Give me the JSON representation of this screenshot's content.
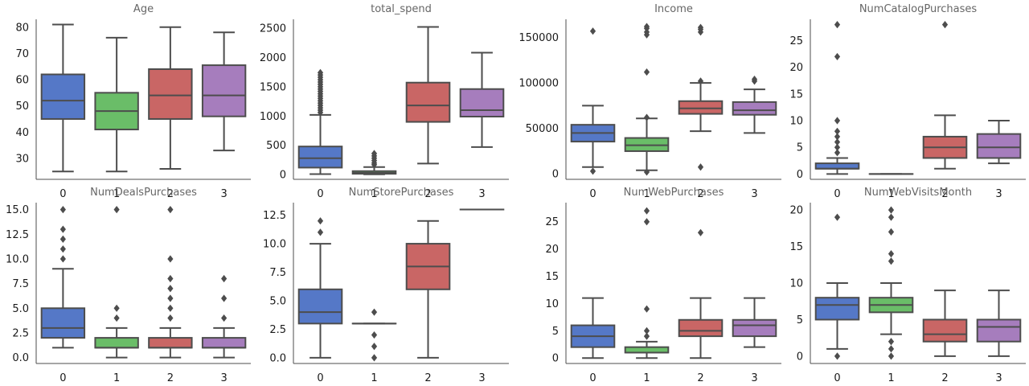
{
  "colors": {
    "0": "#5578c7",
    "1": "#6abd68",
    "2": "#c96665",
    "3": "#a67dbd",
    "line": "#4d4d4d"
  },
  "chart_data": [
    {
      "type": "box",
      "title": "Age",
      "categories": [
        "0",
        "1",
        "2",
        "3"
      ],
      "ylim": [
        22,
        83
      ],
      "yticks": [
        30,
        40,
        50,
        60,
        70,
        80
      ],
      "ytick_labels": [
        "30",
        "40",
        "50",
        "60",
        "70",
        "80"
      ],
      "boxes": [
        {
          "category": "0",
          "whisker_low": 25,
          "q1": 45,
          "median": 52,
          "q3": 62,
          "whisker_high": 81,
          "fliers": []
        },
        {
          "category": "1",
          "whisker_low": 25,
          "q1": 41,
          "median": 48,
          "q3": 55,
          "whisker_high": 76,
          "fliers": []
        },
        {
          "category": "2",
          "whisker_low": 26,
          "q1": 45,
          "median": 54,
          "q3": 64,
          "whisker_high": 80,
          "fliers": []
        },
        {
          "category": "3",
          "whisker_low": 33,
          "q1": 46,
          "median": 54,
          "q3": 65.5,
          "whisker_high": 78,
          "fliers": []
        }
      ]
    },
    {
      "type": "box",
      "title": "total_spend",
      "categories": [
        "0",
        "1",
        "2",
        "3"
      ],
      "ylim": [
        -80,
        2650
      ],
      "yticks": [
        0,
        500,
        1000,
        1500,
        2000,
        2500
      ],
      "ytick_labels": [
        "0",
        "500",
        "1000",
        "1500",
        "2000",
        "2500"
      ],
      "boxes": [
        {
          "category": "0",
          "whisker_low": 10,
          "q1": 120,
          "median": 280,
          "q3": 480,
          "whisker_high": 1020,
          "fliers": [
            1060,
            1100,
            1140,
            1180,
            1220,
            1260,
            1300,
            1340,
            1380,
            1420,
            1460,
            1500,
            1540,
            1580,
            1620,
            1660,
            1700,
            1740
          ]
        },
        {
          "category": "1",
          "whisker_low": 5,
          "q1": 15,
          "median": 30,
          "q3": 60,
          "whisker_high": 130,
          "fliers": [
            170,
            200,
            240,
            280,
            320,
            360
          ]
        },
        {
          "category": "2",
          "whisker_low": 190,
          "q1": 900,
          "median": 1180,
          "q3": 1570,
          "whisker_high": 2520,
          "fliers": []
        },
        {
          "category": "3",
          "whisker_low": 470,
          "q1": 990,
          "median": 1100,
          "q3": 1460,
          "whisker_high": 2080,
          "fliers": []
        }
      ]
    },
    {
      "type": "box",
      "title": "Income",
      "categories": [
        "0",
        "1",
        "2",
        "3"
      ],
      "ylim": [
        -6000,
        170000
      ],
      "yticks": [
        0,
        50000,
        100000,
        150000
      ],
      "ytick_labels": [
        "0",
        "50000",
        "100000",
        "150000"
      ],
      "boxes": [
        {
          "category": "0",
          "whisker_low": 7500,
          "q1": 35500,
          "median": 45000,
          "q3": 54000,
          "whisker_high": 75000,
          "fliers": [
            3000,
            157000
          ]
        },
        {
          "category": "1",
          "whisker_low": 4000,
          "q1": 25000,
          "median": 31500,
          "q3": 39500,
          "whisker_high": 61000,
          "fliers": [
            2000,
            62000,
            112000,
            153000,
            156000,
            160000,
            162000
          ]
        },
        {
          "category": "2",
          "whisker_low": 47000,
          "q1": 66000,
          "median": 72000,
          "q3": 80000,
          "whisker_high": 100000,
          "fliers": [
            7500,
            102000,
            156000,
            159000,
            161000
          ]
        },
        {
          "category": "3",
          "whisker_low": 45000,
          "q1": 65000,
          "median": 70000,
          "q3": 79000,
          "whisker_high": 93000,
          "fliers": [
            102000,
            104000
          ]
        }
      ]
    },
    {
      "type": "box",
      "title": "NumCatalogPurchases",
      "categories": [
        "0",
        "1",
        "2",
        "3"
      ],
      "ylim": [
        -1,
        29
      ],
      "yticks": [
        0,
        5,
        10,
        15,
        20,
        25
      ],
      "ytick_labels": [
        "0",
        "5",
        "10",
        "15",
        "20",
        "25"
      ],
      "boxes": [
        {
          "category": "0",
          "whisker_low": 0,
          "q1": 1,
          "median": 1,
          "q3": 2,
          "whisker_high": 3,
          "fliers": [
            4,
            5,
            6,
            7,
            8,
            10,
            22,
            28
          ]
        },
        {
          "category": "1",
          "whisker_low": 0,
          "q1": 0,
          "median": 0,
          "q3": 0,
          "whisker_high": 0,
          "fliers": []
        },
        {
          "category": "2",
          "whisker_low": 1,
          "q1": 3,
          "median": 5,
          "q3": 7,
          "whisker_high": 11,
          "fliers": [
            28
          ]
        },
        {
          "category": "3",
          "whisker_low": 2,
          "q1": 3,
          "median": 5,
          "q3": 7.5,
          "whisker_high": 10,
          "fliers": []
        }
      ]
    },
    {
      "type": "box",
      "title": "NumDealsPurchases",
      "categories": [
        "0",
        "1",
        "2",
        "3"
      ],
      "ylim": [
        -0.6,
        15.7
      ],
      "yticks": [
        0,
        2.5,
        5,
        7.5,
        10,
        12.5,
        15
      ],
      "ytick_labels": [
        "0.0",
        "2.5",
        "5.0",
        "7.5",
        "10.0",
        "12.5",
        "15.0"
      ],
      "boxes": [
        {
          "category": "0",
          "whisker_low": 1,
          "q1": 2,
          "median": 3,
          "q3": 5,
          "whisker_high": 9,
          "fliers": [
            10,
            11,
            12,
            13,
            15
          ]
        },
        {
          "category": "1",
          "whisker_low": 0,
          "q1": 1,
          "median": 1,
          "q3": 2,
          "whisker_high": 3,
          "fliers": [
            4,
            5,
            15
          ]
        },
        {
          "category": "2",
          "whisker_low": 0,
          "q1": 1,
          "median": 1,
          "q3": 2,
          "whisker_high": 3,
          "fliers": [
            4,
            5,
            6,
            7,
            8,
            10,
            15
          ]
        },
        {
          "category": "3",
          "whisker_low": 0,
          "q1": 1,
          "median": 1,
          "q3": 2,
          "whisker_high": 3,
          "fliers": [
            4,
            6,
            8
          ]
        }
      ]
    },
    {
      "type": "box",
      "title": "NumStorePurchases",
      "categories": [
        "0",
        "1",
        "2",
        "3"
      ],
      "ylim": [
        -0.5,
        13.6
      ],
      "yticks": [
        0,
        2.5,
        5,
        7.5,
        10,
        12.5
      ],
      "ytick_labels": [
        "0.0",
        "2.5",
        "5.0",
        "7.5",
        "10.0",
        "12.5"
      ],
      "boxes": [
        {
          "category": "0",
          "whisker_low": 0,
          "q1": 3,
          "median": 4,
          "q3": 6,
          "whisker_high": 10,
          "fliers": [
            11,
            12
          ]
        },
        {
          "category": "1",
          "whisker_low": 3,
          "q1": 3,
          "median": 3,
          "q3": 3,
          "whisker_high": 3,
          "fliers": [
            0,
            1,
            2,
            4
          ]
        },
        {
          "category": "2",
          "whisker_low": 0,
          "q1": 6,
          "median": 8,
          "q3": 10,
          "whisker_high": 12,
          "fliers": []
        },
        {
          "category": "3",
          "whisker_low": 13,
          "q1": 13,
          "median": 13,
          "q3": 13,
          "whisker_high": 13,
          "fliers": []
        }
      ]
    },
    {
      "type": "box",
      "title": "NumWebPurchases",
      "categories": [
        "0",
        "1",
        "2",
        "3"
      ],
      "ylim": [
        -1,
        28.5
      ],
      "yticks": [
        0,
        5,
        10,
        15,
        20,
        25
      ],
      "ytick_labels": [
        "0",
        "5",
        "10",
        "15",
        "20",
        "25"
      ],
      "boxes": [
        {
          "category": "0",
          "whisker_low": 0,
          "q1": 2,
          "median": 4,
          "q3": 6,
          "whisker_high": 11,
          "fliers": []
        },
        {
          "category": "1",
          "whisker_low": 0,
          "q1": 1,
          "median": 1,
          "q3": 2,
          "whisker_high": 3,
          "fliers": [
            4,
            5,
            9,
            25,
            27
          ]
        },
        {
          "category": "2",
          "whisker_low": 0,
          "q1": 4,
          "median": 5,
          "q3": 7,
          "whisker_high": 11,
          "fliers": [
            23
          ]
        },
        {
          "category": "3",
          "whisker_low": 2,
          "q1": 4,
          "median": 6,
          "q3": 7,
          "whisker_high": 11,
          "fliers": []
        }
      ]
    },
    {
      "type": "box",
      "title": "NumWebVisitsMonth",
      "categories": [
        "0",
        "1",
        "2",
        "3"
      ],
      "ylim": [
        -1,
        21
      ],
      "yticks": [
        0,
        5,
        10,
        15,
        20
      ],
      "ytick_labels": [
        "0",
        "5",
        "10",
        "15",
        "20"
      ],
      "boxes": [
        {
          "category": "0",
          "whisker_low": 1,
          "q1": 5,
          "median": 7,
          "q3": 8,
          "whisker_high": 10,
          "fliers": [
            0,
            19
          ]
        },
        {
          "category": "1",
          "whisker_low": 3,
          "q1": 6,
          "median": 7,
          "q3": 8,
          "whisker_high": 10,
          "fliers": [
            0,
            1,
            2,
            13,
            14,
            17,
            19,
            20
          ]
        },
        {
          "category": "2",
          "whisker_low": 0,
          "q1": 2,
          "median": 3,
          "q3": 5,
          "whisker_high": 9,
          "fliers": []
        },
        {
          "category": "3",
          "whisker_low": 0,
          "q1": 2,
          "median": 4,
          "q3": 5,
          "whisker_high": 9,
          "fliers": []
        }
      ]
    }
  ]
}
